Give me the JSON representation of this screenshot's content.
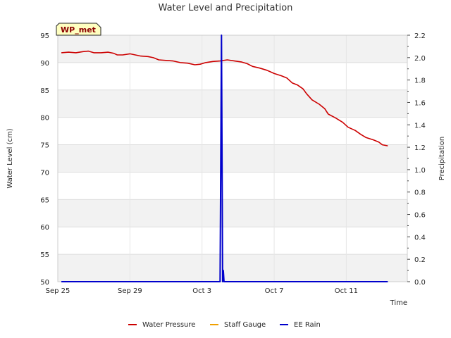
{
  "chart_data": {
    "type": "line",
    "title": "Water Level and Precipitation",
    "badge": "WP_met",
    "xlabel": "Time",
    "ylabel": "Water Level (cm)",
    "y2label": "Precipitation",
    "x_ticks": [
      {
        "label": "Sep 25",
        "day": 0
      },
      {
        "label": "Sep 29",
        "day": 4
      },
      {
        "label": "Oct 3",
        "day": 8
      },
      {
        "label": "Oct 7",
        "day": 12
      },
      {
        "label": "Oct 11",
        "day": 16
      }
    ],
    "xlim_days": [
      0,
      17
    ],
    "ylim": [
      50,
      95
    ],
    "y_ticks": [
      "50",
      "55",
      "60",
      "65",
      "70",
      "75",
      "80",
      "85",
      "90",
      "95"
    ],
    "y2lim": [
      0,
      2.2
    ],
    "y2_ticks": [
      "0.0",
      "0.2",
      "0.4",
      "0.6",
      "0.8",
      "1.0",
      "1.2",
      "1.4",
      "1.6",
      "1.8",
      "2.0",
      "2.2"
    ],
    "series": [
      {
        "name": "Water Pressure",
        "color": "#cc0000",
        "axis": "left",
        "points": [
          [
            0.2,
            91.8
          ],
          [
            0.6,
            91.9
          ],
          [
            1.0,
            91.8
          ],
          [
            1.4,
            92.0
          ],
          [
            1.7,
            92.1
          ],
          [
            2.0,
            91.8
          ],
          [
            2.4,
            91.8
          ],
          [
            2.8,
            91.9
          ],
          [
            3.1,
            91.7
          ],
          [
            3.3,
            91.4
          ],
          [
            3.6,
            91.4
          ],
          [
            4.0,
            91.6
          ],
          [
            4.3,
            91.4
          ],
          [
            4.6,
            91.2
          ],
          [
            5.0,
            91.1
          ],
          [
            5.3,
            90.9
          ],
          [
            5.6,
            90.5
          ],
          [
            6.0,
            90.4
          ],
          [
            6.4,
            90.3
          ],
          [
            6.8,
            90.0
          ],
          [
            7.2,
            89.9
          ],
          [
            7.6,
            89.6
          ],
          [
            7.9,
            89.7
          ],
          [
            8.2,
            90.0
          ],
          [
            8.6,
            90.2
          ],
          [
            9.0,
            90.3
          ],
          [
            9.4,
            90.5
          ],
          [
            9.8,
            90.3
          ],
          [
            10.2,
            90.1
          ],
          [
            10.5,
            89.8
          ],
          [
            10.8,
            89.3
          ],
          [
            11.2,
            89.0
          ],
          [
            11.6,
            88.6
          ],
          [
            12.0,
            88.0
          ],
          [
            12.4,
            87.6
          ],
          [
            12.7,
            87.2
          ],
          [
            13.0,
            86.3
          ],
          [
            13.3,
            85.9
          ],
          [
            13.6,
            85.2
          ],
          [
            13.8,
            84.3
          ],
          [
            14.1,
            83.2
          ],
          [
            14.5,
            82.4
          ],
          [
            14.8,
            81.6
          ],
          [
            15.0,
            80.6
          ],
          [
            15.4,
            79.9
          ],
          [
            15.8,
            79.1
          ],
          [
            16.1,
            78.2
          ],
          [
            16.5,
            77.6
          ],
          [
            16.8,
            76.9
          ],
          [
            17.1,
            76.3
          ],
          [
            17.5,
            75.9
          ],
          [
            17.8,
            75.5
          ],
          [
            18.0,
            75.0
          ],
          [
            18.3,
            74.8
          ]
        ]
      },
      {
        "name": "Staff Gauge",
        "color": "#f0a000",
        "axis": "left",
        "points": []
      },
      {
        "name": "EE Rain",
        "color": "#0000cc",
        "axis": "right",
        "points": [
          [
            0.2,
            0.0
          ],
          [
            9.0,
            0.0
          ],
          [
            9.08,
            2.2
          ],
          [
            9.14,
            0.0
          ],
          [
            9.18,
            0.1
          ],
          [
            9.22,
            0.0
          ],
          [
            18.3,
            0.0
          ]
        ]
      }
    ],
    "legend_placement": "bottom"
  }
}
